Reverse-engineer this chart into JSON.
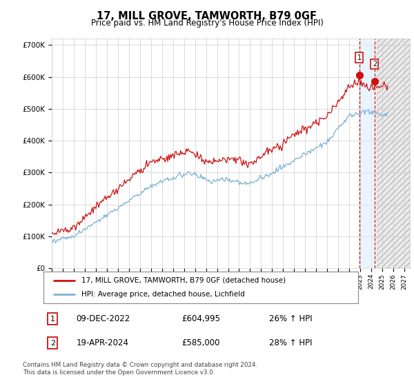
{
  "title": "17, MILL GROVE, TAMWORTH, B79 0GF",
  "subtitle": "Price paid vs. HM Land Registry's House Price Index (HPI)",
  "hpi_color": "#7ab0d4",
  "price_color": "#cc1111",
  "sale1_date": 2022.92,
  "sale1_price": 604995,
  "sale2_date": 2024.3,
  "sale2_price": 585000,
  "legend_line1": "17, MILL GROVE, TAMWORTH, B79 0GF (detached house)",
  "legend_line2": "HPI: Average price, detached house, Lichfield",
  "annot1_date": "09-DEC-2022",
  "annot1_price": "£604,995",
  "annot1_hpi": "26% ↑ HPI",
  "annot2_date": "19-APR-2024",
  "annot2_price": "£585,000",
  "annot2_hpi": "28% ↑ HPI",
  "footer": "Contains HM Land Registry data © Crown copyright and database right 2024.\nThis data is licensed under the Open Government Licence v3.0.",
  "xlim_start": 1995.0,
  "xlim_end": 2027.5,
  "ylim": [
    0,
    720000
  ],
  "yticks": [
    0,
    100000,
    200000,
    300000,
    400000,
    500000,
    600000,
    700000
  ],
  "ytick_labels": [
    "£0",
    "£100K",
    "£200K",
    "£300K",
    "£400K",
    "£500K",
    "£600K",
    "£700K"
  ],
  "background_color": "#ffffff",
  "grid_color": "#cccccc"
}
